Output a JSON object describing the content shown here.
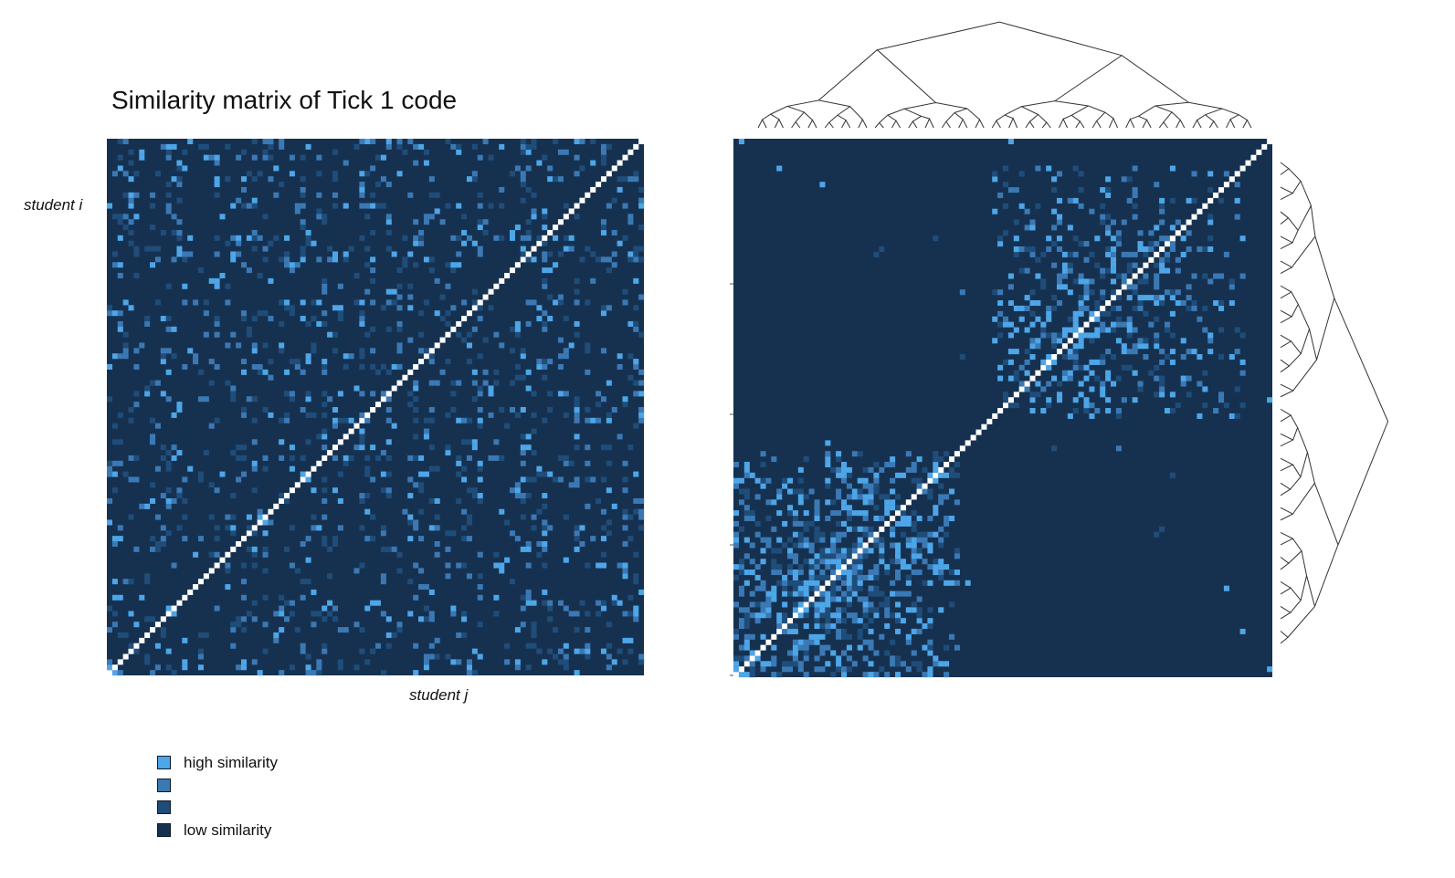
{
  "title": "Similarity matrix of Tick 1 code",
  "chart_data": [
    {
      "type": "heatmap",
      "panel": "original order",
      "xlabel": "student j",
      "ylabel": "student i",
      "n_students": 100,
      "diagonal": "white (self-similarity)",
      "pattern": "scattered, no block structure",
      "colors": [
        "#163150",
        "#1f4d7a",
        "#3b79b5",
        "#4da6e8"
      ]
    },
    {
      "type": "heatmap",
      "panel": "reordered by hierarchical clustering",
      "n_students": 100,
      "dendrograms": [
        "top",
        "right"
      ],
      "diagonal": "white (self-similarity)",
      "pattern": "two high-similarity blocks along the diagonal",
      "colors": [
        "#163150",
        "#1f4d7a",
        "#3b79b5",
        "#4da6e8"
      ]
    }
  ],
  "legend": {
    "items": [
      {
        "label": "high similarity",
        "color": "#4da6e8"
      },
      {
        "label": "",
        "color": "#3b79b5"
      },
      {
        "label": "",
        "color": "#1f4d7a"
      },
      {
        "label": "low similarity",
        "color": "#163150"
      }
    ]
  }
}
